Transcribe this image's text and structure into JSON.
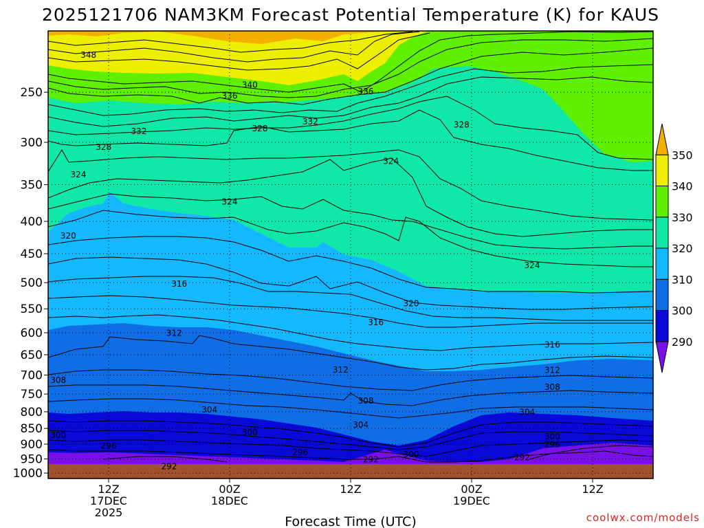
{
  "chart_data": {
    "type": "contour",
    "title": "2025121706 NAM3KM Forecast Potential Temperature (K) for KAUS",
    "xlabel": "Forecast Time (UTC)",
    "ylabel": "",
    "x_ticks": [
      {
        "hour": 6,
        "lines": [
          "12Z",
          "17DEC",
          "2025"
        ]
      },
      {
        "hour": 18,
        "lines": [
          "00Z",
          "18DEC"
        ]
      },
      {
        "hour": 30,
        "lines": [
          "12Z"
        ]
      },
      {
        "hour": 42,
        "lines": [
          "00Z",
          "19DEC"
        ]
      },
      {
        "hour": 54,
        "lines": [
          "12Z"
        ]
      }
    ],
    "xlim": [
      0,
      60
    ],
    "y_axis": "pressure (hPa), log scale, inverted",
    "ylim": [
      1020,
      200
    ],
    "y_ticks": [
      250,
      300,
      350,
      400,
      450,
      500,
      550,
      600,
      650,
      700,
      750,
      800,
      850,
      900,
      950,
      1000
    ],
    "colorbar": {
      "levels": [
        290,
        300,
        310,
        320,
        330,
        340,
        350
      ],
      "colors": [
        "#7a10e8",
        "#0a0ad8",
        "#0f6ee6",
        "#14b8ff",
        "#10e8a8",
        "#5ef000",
        "#eeee00",
        "#f4b000"
      ]
    },
    "surface_color": "#a0522d",
    "contour_labels": [
      {
        "value": "348",
        "hour": 4,
        "p": 218
      },
      {
        "value": "340",
        "hour": 20,
        "p": 243
      },
      {
        "value": "336",
        "hour": 18,
        "p": 253
      },
      {
        "value": "336",
        "hour": 31.5,
        "p": 249
      },
      {
        "value": "332",
        "hour": 9,
        "p": 288
      },
      {
        "value": "328",
        "hour": 21,
        "p": 285
      },
      {
        "value": "332",
        "hour": 26,
        "p": 278
      },
      {
        "value": "328",
        "hour": 41,
        "p": 281
      },
      {
        "value": "328",
        "hour": 5.5,
        "p": 305
      },
      {
        "value": "324",
        "hour": 3,
        "p": 337
      },
      {
        "value": "324",
        "hour": 34,
        "p": 321
      },
      {
        "value": "324",
        "hour": 18,
        "p": 372
      },
      {
        "value": "320",
        "hour": 2,
        "p": 421
      },
      {
        "value": "324",
        "hour": 48,
        "p": 469
      },
      {
        "value": "316",
        "hour": 13,
        "p": 502
      },
      {
        "value": "320",
        "hour": 36,
        "p": 539
      },
      {
        "value": "316",
        "hour": 32.5,
        "p": 577
      },
      {
        "value": "312",
        "hour": 12.5,
        "p": 600
      },
      {
        "value": "316",
        "hour": 50,
        "p": 626
      },
      {
        "value": "312",
        "hour": 29,
        "p": 686
      },
      {
        "value": "312",
        "hour": 50,
        "p": 687
      },
      {
        "value": "308",
        "hour": 1,
        "p": 712
      },
      {
        "value": "308",
        "hour": 31.5,
        "p": 768
      },
      {
        "value": "308",
        "hour": 50,
        "p": 730
      },
      {
        "value": "304",
        "hour": 16,
        "p": 793
      },
      {
        "value": "304",
        "hour": 47.5,
        "p": 800
      },
      {
        "value": "304",
        "hour": 31,
        "p": 838
      },
      {
        "value": "300",
        "hour": 1,
        "p": 870
      },
      {
        "value": "300",
        "hour": 20,
        "p": 861
      },
      {
        "value": "300",
        "hour": 50,
        "p": 875
      },
      {
        "value": "296",
        "hour": 6,
        "p": 905
      },
      {
        "value": "296",
        "hour": 25,
        "p": 926
      },
      {
        "value": "296",
        "hour": 50,
        "p": 900
      },
      {
        "value": "300",
        "hour": 36,
        "p": 933
      },
      {
        "value": "292",
        "hour": 32,
        "p": 951
      },
      {
        "value": "292",
        "hour": 12,
        "p": 975
      },
      {
        "value": "292",
        "hour": 47,
        "p": 944
      }
    ]
  },
  "credit": "coolwx.com/models"
}
